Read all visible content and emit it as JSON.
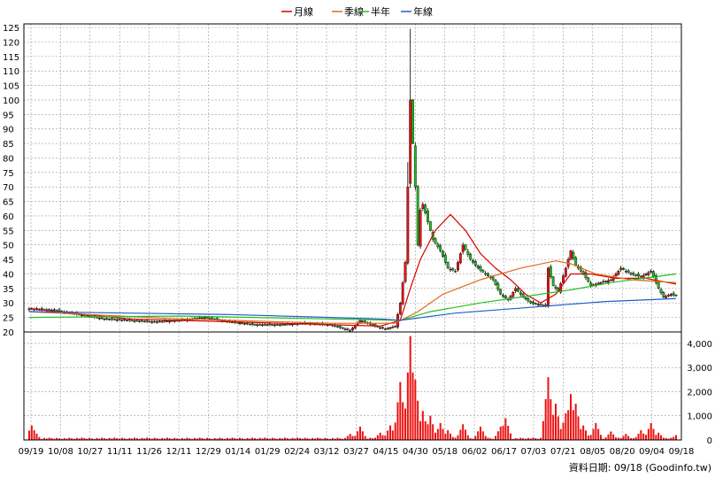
{
  "chart_data": {
    "type": "candlestick",
    "legend": {
      "placement": "top-center",
      "items": [
        {
          "name": "月線",
          "color": "#d40000"
        },
        {
          "name": "季線",
          "color": "#e06a1a"
        },
        {
          "name": "半年",
          "color": "#22c022"
        },
        {
          "name": "年線",
          "color": "#1f5fc8"
        }
      ]
    },
    "price_axis": {
      "ylim": [
        20,
        125
      ],
      "ticks": [
        "125",
        "120",
        "115",
        "110",
        "105",
        "100",
        "95",
        "90",
        "85",
        "80",
        "75",
        "70",
        "65",
        "60",
        "55",
        "50",
        "45",
        "40",
        "35",
        "30",
        "25",
        "20"
      ],
      "grid": true
    },
    "volume_axis": {
      "ylim": [
        0,
        4400
      ],
      "ticks": [
        "4,000",
        "3,000",
        "2,000",
        "1,000",
        "0"
      ],
      "grid": true
    },
    "x_labels": [
      "09/19",
      "10/08",
      "10/27",
      "11/11",
      "11/26",
      "12/11",
      "12/29",
      "01/14",
      "01/29",
      "02/24",
      "03/12",
      "03/27",
      "04/15",
      "04/30",
      "05/18",
      "06/02",
      "06/17",
      "07/03",
      "07/21",
      "08/05",
      "08/20",
      "09/04",
      "09/18"
    ],
    "colors": {
      "up": "#ee1111",
      "down": "#22bb22",
      "volume": "#ee1111",
      "grid": "#999999",
      "frame": "#000000"
    },
    "footer": "資料日期: 09/18 (Goodinfo.tw)",
    "close_series": [
      {
        "x": 0,
        "y": 28
      },
      {
        "x": 10,
        "y": 27.5
      },
      {
        "x": 20,
        "y": 26
      },
      {
        "x": 30,
        "y": 24.5
      },
      {
        "x": 40,
        "y": 24
      },
      {
        "x": 50,
        "y": 23.5
      },
      {
        "x": 60,
        "y": 24
      },
      {
        "x": 70,
        "y": 25
      },
      {
        "x": 80,
        "y": 23.5
      },
      {
        "x": 90,
        "y": 22.5
      },
      {
        "x": 100,
        "y": 22.5
      },
      {
        "x": 110,
        "y": 23
      },
      {
        "x": 120,
        "y": 22.5
      },
      {
        "x": 128,
        "y": 20.5
      },
      {
        "x": 132,
        "y": 24
      },
      {
        "x": 138,
        "y": 22
      },
      {
        "x": 142,
        "y": 21
      },
      {
        "x": 146,
        "y": 22
      },
      {
        "x": 148,
        "y": 30
      },
      {
        "x": 150,
        "y": 44
      },
      {
        "x": 151,
        "y": 70
      },
      {
        "x": 152,
        "y": 100
      },
      {
        "x": 153,
        "y": 85
      },
      {
        "x": 154,
        "y": 70
      },
      {
        "x": 155,
        "y": 50
      },
      {
        "x": 156,
        "y": 62
      },
      {
        "x": 157,
        "y": 64
      },
      {
        "x": 159,
        "y": 58
      },
      {
        "x": 161,
        "y": 52
      },
      {
        "x": 164,
        "y": 48
      },
      {
        "x": 167,
        "y": 42
      },
      {
        "x": 170,
        "y": 41
      },
      {
        "x": 173,
        "y": 50
      },
      {
        "x": 176,
        "y": 45
      },
      {
        "x": 179,
        "y": 42
      },
      {
        "x": 182,
        "y": 40
      },
      {
        "x": 185,
        "y": 38
      },
      {
        "x": 188,
        "y": 33
      },
      {
        "x": 191,
        "y": 31
      },
      {
        "x": 194,
        "y": 35
      },
      {
        "x": 197,
        "y": 32
      },
      {
        "x": 200,
        "y": 30
      },
      {
        "x": 203,
        "y": 29.5
      },
      {
        "x": 206,
        "y": 29
      },
      {
        "x": 207,
        "y": 42
      },
      {
        "x": 209,
        "y": 36
      },
      {
        "x": 211,
        "y": 34
      },
      {
        "x": 214,
        "y": 42
      },
      {
        "x": 216,
        "y": 48
      },
      {
        "x": 218,
        "y": 43
      },
      {
        "x": 221,
        "y": 40
      },
      {
        "x": 224,
        "y": 36
      },
      {
        "x": 228,
        "y": 37
      },
      {
        "x": 232,
        "y": 38
      },
      {
        "x": 236,
        "y": 42
      },
      {
        "x": 240,
        "y": 40
      },
      {
        "x": 244,
        "y": 39
      },
      {
        "x": 248,
        "y": 41
      },
      {
        "x": 251,
        "y": 35
      },
      {
        "x": 253,
        "y": 32
      },
      {
        "x": 256,
        "y": 33
      },
      {
        "x": 258,
        "y": 32.5
      }
    ],
    "ma_series": [
      {
        "name": "月線",
        "points": [
          {
            "x": 0,
            "y": 28
          },
          {
            "x": 40,
            "y": 24.5
          },
          {
            "x": 100,
            "y": 23
          },
          {
            "x": 140,
            "y": 22
          },
          {
            "x": 148,
            "y": 24
          },
          {
            "x": 152,
            "y": 35
          },
          {
            "x": 156,
            "y": 45
          },
          {
            "x": 162,
            "y": 55
          },
          {
            "x": 168,
            "y": 60.5
          },
          {
            "x": 174,
            "y": 55
          },
          {
            "x": 180,
            "y": 47
          },
          {
            "x": 186,
            "y": 42
          },
          {
            "x": 192,
            "y": 38
          },
          {
            "x": 198,
            "y": 33
          },
          {
            "x": 204,
            "y": 30
          },
          {
            "x": 210,
            "y": 33
          },
          {
            "x": 216,
            "y": 40
          },
          {
            "x": 224,
            "y": 40
          },
          {
            "x": 234,
            "y": 38.5
          },
          {
            "x": 246,
            "y": 38.5
          },
          {
            "x": 252,
            "y": 37.5
          },
          {
            "x": 258,
            "y": 36.5
          }
        ]
      },
      {
        "name": "季線",
        "points": [
          {
            "x": 0,
            "y": 27
          },
          {
            "x": 60,
            "y": 24.5
          },
          {
            "x": 120,
            "y": 23
          },
          {
            "x": 146,
            "y": 23
          },
          {
            "x": 155,
            "y": 27
          },
          {
            "x": 165,
            "y": 33
          },
          {
            "x": 180,
            "y": 38
          },
          {
            "x": 196,
            "y": 42
          },
          {
            "x": 210,
            "y": 44.5
          },
          {
            "x": 216,
            "y": 43.5
          },
          {
            "x": 226,
            "y": 40
          },
          {
            "x": 240,
            "y": 38
          },
          {
            "x": 258,
            "y": 37
          }
        ]
      },
      {
        "name": "半年",
        "points": [
          {
            "x": 0,
            "y": 25
          },
          {
            "x": 60,
            "y": 25.5
          },
          {
            "x": 120,
            "y": 24.5
          },
          {
            "x": 148,
            "y": 24
          },
          {
            "x": 160,
            "y": 27
          },
          {
            "x": 180,
            "y": 30
          },
          {
            "x": 200,
            "y": 32.5
          },
          {
            "x": 216,
            "y": 34.5
          },
          {
            "x": 232,
            "y": 37
          },
          {
            "x": 258,
            "y": 40
          }
        ]
      },
      {
        "name": "年線",
        "points": [
          {
            "x": 0,
            "y": 27
          },
          {
            "x": 80,
            "y": 26
          },
          {
            "x": 140,
            "y": 24.5
          },
          {
            "x": 148,
            "y": 24
          },
          {
            "x": 170,
            "y": 26.5
          },
          {
            "x": 200,
            "y": 28.5
          },
          {
            "x": 230,
            "y": 30.5
          },
          {
            "x": 258,
            "y": 31.5
          }
        ]
      }
    ],
    "volume_peaks": [
      {
        "x": 1,
        "y": 600
      },
      {
        "x": 2,
        "y": 400
      },
      {
        "x": 128,
        "y": 250
      },
      {
        "x": 132,
        "y": 550
      },
      {
        "x": 140,
        "y": 300
      },
      {
        "x": 144,
        "y": 600
      },
      {
        "x": 148,
        "y": 2400
      },
      {
        "x": 150,
        "y": 1300
      },
      {
        "x": 152,
        "y": 4300
      },
      {
        "x": 154,
        "y": 2500
      },
      {
        "x": 157,
        "y": 1200
      },
      {
        "x": 160,
        "y": 1000
      },
      {
        "x": 164,
        "y": 700
      },
      {
        "x": 167,
        "y": 400
      },
      {
        "x": 173,
        "y": 650
      },
      {
        "x": 180,
        "y": 550
      },
      {
        "x": 188,
        "y": 550
      },
      {
        "x": 190,
        "y": 900
      },
      {
        "x": 207,
        "y": 2600
      },
      {
        "x": 208,
        "y": 1600
      },
      {
        "x": 210,
        "y": 1500
      },
      {
        "x": 214,
        "y": 1100
      },
      {
        "x": 216,
        "y": 1900
      },
      {
        "x": 218,
        "y": 1500
      },
      {
        "x": 221,
        "y": 600
      },
      {
        "x": 226,
        "y": 700
      },
      {
        "x": 232,
        "y": 350
      },
      {
        "x": 238,
        "y": 250
      },
      {
        "x": 244,
        "y": 400
      },
      {
        "x": 248,
        "y": 700
      },
      {
        "x": 251,
        "y": 300
      },
      {
        "x": 258,
        "y": 200
      }
    ]
  }
}
